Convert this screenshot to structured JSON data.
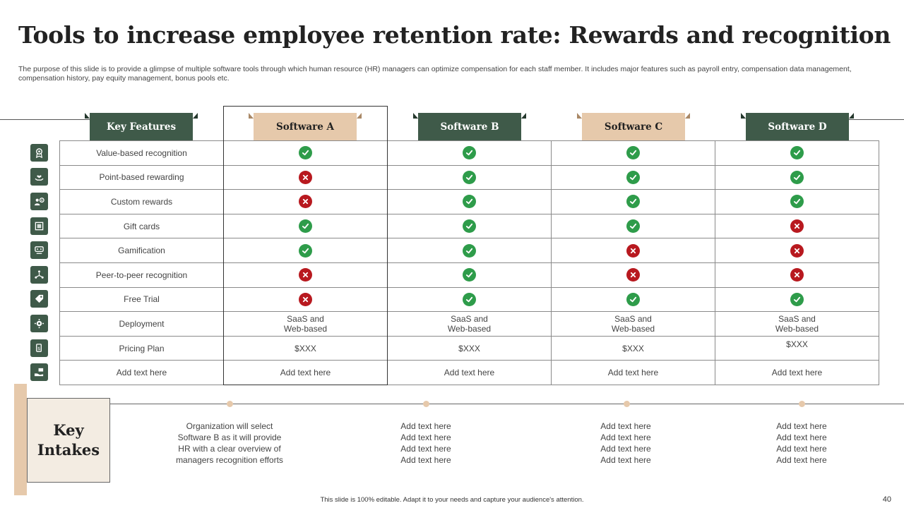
{
  "title": "Tools to increase employee retention rate: Rewards and recognition",
  "subtitle": "The purpose of this slide is to provide a glimpse of multiple software tools through which human resource (HR) managers can optimize compensation for each staff member. It includes major features such as payroll entry, compensation data management, compensation history, pay equity management, bonus pools etc.",
  "headers": {
    "features": "Key Features",
    "software_a": "Software A",
    "software_b": "Software B",
    "software_c": "Software C",
    "software_d": "Software D"
  },
  "rows": [
    {
      "feature": "Value-based recognition",
      "icon": "award-icon",
      "a": "yes",
      "b": "yes",
      "c": "yes",
      "d": "yes"
    },
    {
      "feature": "Point-based rewarding",
      "icon": "hand-heart-icon",
      "a": "no",
      "b": "yes",
      "c": "yes",
      "d": "yes"
    },
    {
      "feature": "Custom rewards",
      "icon": "users-gear-icon",
      "a": "no",
      "b": "yes",
      "c": "yes",
      "d": "yes"
    },
    {
      "feature": "Gift cards",
      "icon": "gift-card-icon",
      "a": "yes",
      "b": "yes",
      "c": "yes",
      "d": "no"
    },
    {
      "feature": "Gamification",
      "icon": "game-icon",
      "a": "yes",
      "b": "yes",
      "c": "no",
      "d": "no"
    },
    {
      "feature": "Peer-to-peer recognition",
      "icon": "people-network-icon",
      "a": "no",
      "b": "yes",
      "c": "no",
      "d": "no"
    },
    {
      "feature": "Free Trial",
      "icon": "tag-icon",
      "a": "no",
      "b": "yes",
      "c": "yes",
      "d": "yes"
    },
    {
      "feature": "Deployment",
      "icon": "cloud-gear-icon",
      "a_line1": "SaaS and",
      "a_line2": "Web-based",
      "b_line1": "SaaS and",
      "b_line2": "Web-based",
      "c_line1": "SaaS and",
      "c_line2": "Web-based",
      "d_line1": "SaaS and",
      "d_line2": "Web-based"
    },
    {
      "feature": "Pricing Plan",
      "icon": "price-tag-icon",
      "a": "$XXX",
      "b": "$XXX",
      "c": "$XXX",
      "d": "$XXX"
    },
    {
      "feature": "Add text here",
      "icon": "hand-money-icon",
      "a": "Add text here",
      "b": "Add text here",
      "c": "Add text here",
      "d": "Add text here"
    }
  ],
  "key_intakes": {
    "title_line1": "Key",
    "title_line2": "Intakes",
    "col1": [
      "Organization  will select",
      "Software  B as it will provide",
      "HR with a clear overview  of",
      "managers recognition efforts"
    ],
    "col2": [
      "Add text here",
      "Add text here",
      "Add text here",
      "Add text here"
    ],
    "col3": [
      "Add text here",
      "Add text here",
      "Add text here",
      "Add text here"
    ],
    "col4": [
      "Add text here",
      "Add text here",
      "Add text here",
      "Add text here"
    ]
  },
  "footer": "This slide is 100% editable. Adapt it to your needs and capture your audience's attention.",
  "page_number": "40",
  "colors": {
    "dark_green": "#3f5a49",
    "tan": "#e6c9ab",
    "check_green": "#2e9c4a",
    "cross_red": "#b8191f"
  }
}
